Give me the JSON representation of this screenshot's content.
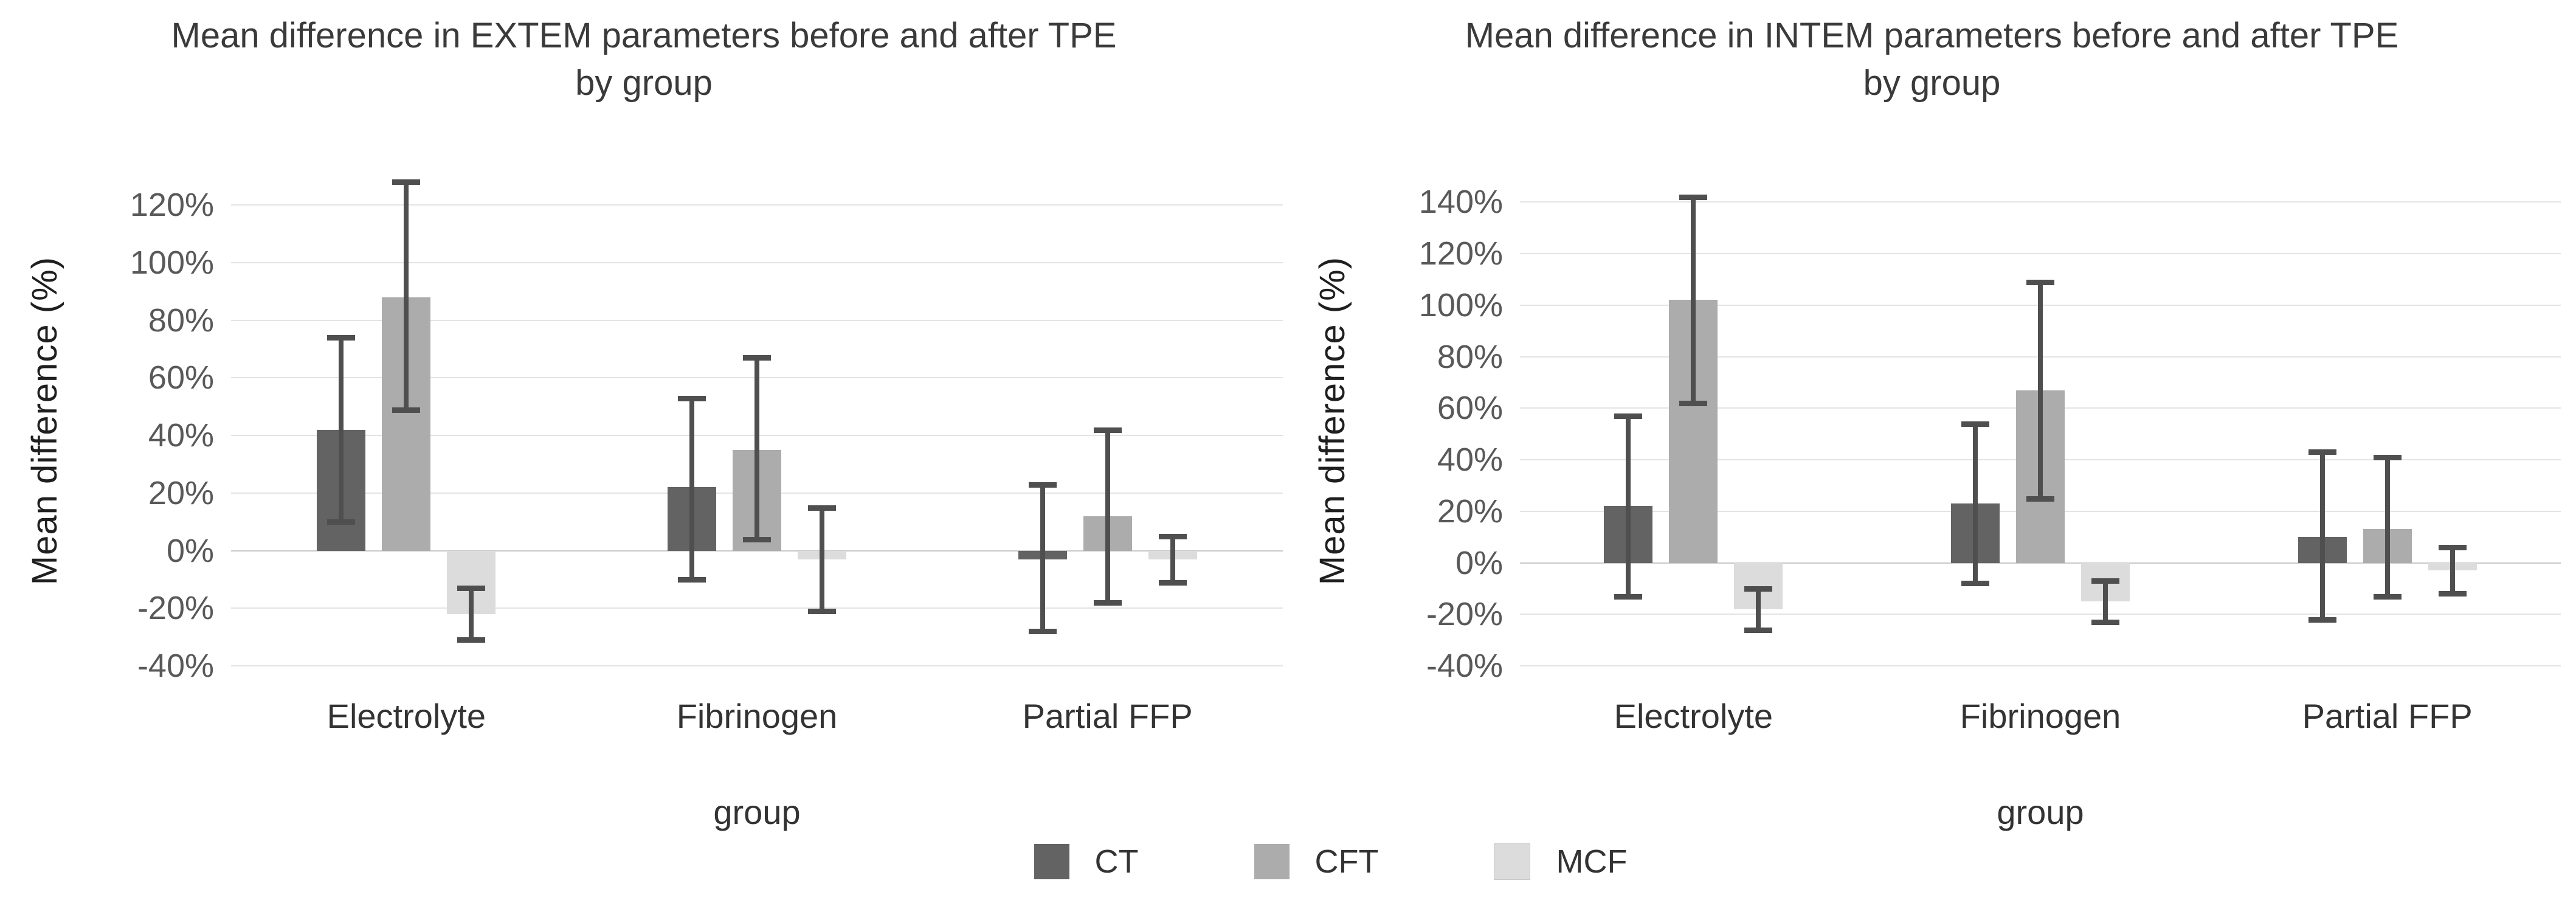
{
  "legend": {
    "items": [
      {
        "label": "CT",
        "color": "#636363"
      },
      {
        "label": "CFT",
        "color": "#acacac"
      },
      {
        "label": "MCF",
        "color": "#dcdcdc"
      }
    ]
  },
  "style": {
    "error_bar_color": "#4f4f4f",
    "gridline_color": "#e4e4e4",
    "zero_line_color": "#c9c9c9"
  },
  "chart_data": [
    {
      "type": "bar",
      "title_line1": "Mean difference in EXTEM parameters before and after TPE",
      "title_line2": "by group",
      "ylabel": "Mean difference  (%)",
      "xlabel": "group",
      "categories": [
        "Electrolyte",
        "Fibrinogen",
        "Partial FFP"
      ],
      "axis": {
        "min": -40,
        "max": 130,
        "unit": "percent"
      },
      "grid": true,
      "legend_position": "bottom-shared",
      "ticks": [
        {
          "label": "120%",
          "value": 120
        },
        {
          "label": "100%",
          "value": 100
        },
        {
          "label": "80%",
          "value": 80
        },
        {
          "label": "60%",
          "value": 60
        },
        {
          "label": "40%",
          "value": 40
        },
        {
          "label": "20%",
          "value": 20
        },
        {
          "label": "0%",
          "value": 0
        },
        {
          "label": "-20%",
          "value": -20
        },
        {
          "label": "-40%",
          "value": -40
        }
      ],
      "series": [
        {
          "name": "CT",
          "color": "#636363",
          "values": [
            42,
            22,
            -3
          ],
          "err_low": [
            10,
            -10,
            -28
          ],
          "err_high": [
            74,
            53,
            23
          ]
        },
        {
          "name": "CFT",
          "color": "#acacac",
          "values": [
            88,
            35,
            12
          ],
          "err_low": [
            49,
            4,
            -18
          ],
          "err_high": [
            128,
            67,
            42
          ]
        },
        {
          "name": "MCF",
          "color": "#dcdcdc",
          "values": [
            -22,
            -3,
            -3
          ],
          "err_low": [
            -31,
            -21,
            -11
          ],
          "err_high": [
            -13,
            15,
            5
          ]
        }
      ]
    },
    {
      "type": "bar",
      "title_line1": "Mean difference in INTEM parameters before and after TPE",
      "title_line2": "by group",
      "ylabel": "Mean difference (%)",
      "xlabel": "group",
      "categories": [
        "Electrolyte",
        "Fibrinogen",
        "Partial FFP"
      ],
      "axis": {
        "min": -40,
        "max": 150,
        "unit": "percent"
      },
      "grid": true,
      "legend_position": "bottom-shared",
      "ticks": [
        {
          "label": "140%",
          "value": 140
        },
        {
          "label": "120%",
          "value": 120
        },
        {
          "label": "100%",
          "value": 100
        },
        {
          "label": "80%",
          "value": 80
        },
        {
          "label": "60%",
          "value": 60
        },
        {
          "label": "40%",
          "value": 40
        },
        {
          "label": "20%",
          "value": 20
        },
        {
          "label": "0%",
          "value": 0
        },
        {
          "label": "-20%",
          "value": -20
        },
        {
          "label": "-40%",
          "value": -40
        }
      ],
      "series": [
        {
          "name": "CT",
          "color": "#636363",
          "values": [
            22,
            23,
            10
          ],
          "err_low": [
            -13,
            -8,
            -22
          ],
          "err_high": [
            57,
            54,
            43
          ]
        },
        {
          "name": "CFT",
          "color": "#acacac",
          "values": [
            102,
            67,
            13
          ],
          "err_low": [
            62,
            25,
            -13
          ],
          "err_high": [
            142,
            109,
            41
          ]
        },
        {
          "name": "MCF",
          "color": "#dcdcdc",
          "values": [
            -18,
            -15,
            -3
          ],
          "err_low": [
            -26,
            -23,
            -12
          ],
          "err_high": [
            -10,
            -7,
            6
          ]
        }
      ]
    }
  ]
}
